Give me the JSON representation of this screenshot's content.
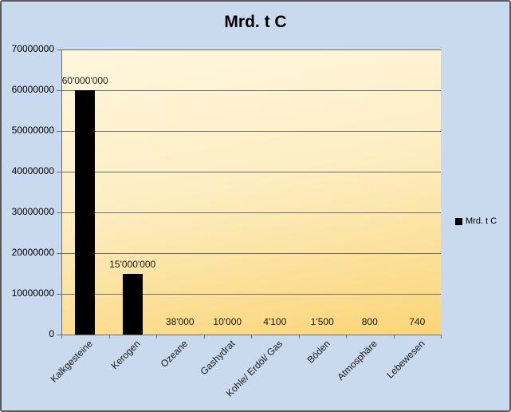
{
  "title": "Mrd. t C",
  "legend": {
    "label": "Mrd. t C",
    "swatch_color": "#000000",
    "position": "right"
  },
  "chart_data": {
    "type": "bar",
    "title": "Mrd. t C",
    "categories": [
      "Kalkgesteine",
      "Kerogen",
      "Ozeane",
      "Gashydrat",
      "Kohle/ Erdöl/ Gas",
      "Böden",
      "Atmosphäre",
      "Lebewesen"
    ],
    "series": [
      {
        "name": "Mrd. t C",
        "values": [
          60000000,
          15000000,
          38000,
          10000,
          4100,
          1500,
          800,
          740
        ],
        "data_labels": [
          "60'000'000",
          "15'000'000",
          "38'000",
          "10'000",
          "4'100",
          "1'500",
          "800",
          "740"
        ],
        "color": "#000000"
      }
    ],
    "xlabel": "",
    "ylabel": "",
    "ylim": [
      0,
      70000000
    ],
    "ytick_step": 10000000,
    "ytick_labels": [
      "0",
      "10000000",
      "20000000",
      "30000000",
      "40000000",
      "50000000",
      "60000000",
      "70000000"
    ],
    "grid": true,
    "legend_position": "right",
    "colors": {
      "bar": "#000000",
      "chart_background": "#c9d9ee",
      "plot_background_top": "#fef6de",
      "plot_background_bottom": "#fbd577",
      "gridline": "#6e6e6e",
      "border": "#595959",
      "text": "#000000"
    }
  }
}
